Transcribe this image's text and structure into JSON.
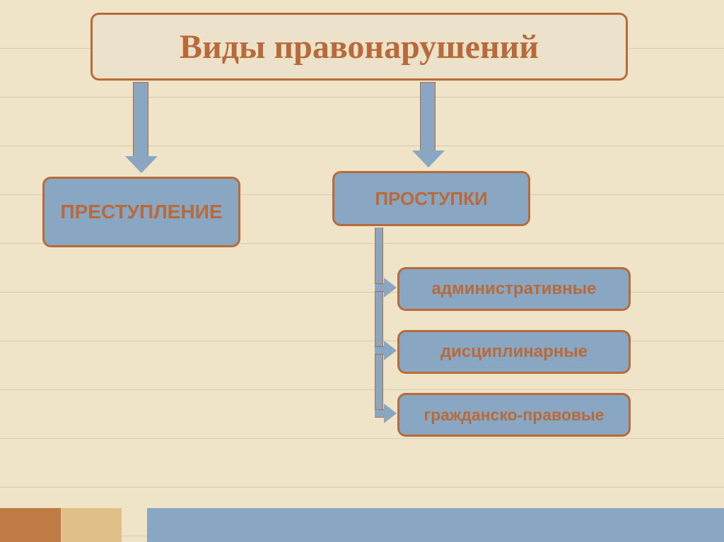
{
  "type": "flowchart",
  "background_color": "#f0e4c8",
  "stripe_color": "#d9ccae",
  "title": {
    "text": "Виды правонарушений",
    "fontsize": 48,
    "color": "#b96a3b",
    "bg": "#ece1c9",
    "border": "#b96a3b"
  },
  "node_style": {
    "fill": "#89a7c2",
    "border": "#b96a3b",
    "text_color": "#b96a3b",
    "border_radius": 12,
    "border_width": 3
  },
  "arrow_style": {
    "fill": "#89a7c2",
    "border": "#b96a3b"
  },
  "nodes": {
    "left": {
      "label": "ПРЕСТУПЛЕНИЕ",
      "fontsize": 28
    },
    "right": {
      "label": "ПРОСТУПКИ",
      "fontsize": 26
    },
    "children": [
      {
        "label": "административные",
        "fontsize": 24
      },
      {
        "label": "дисциплинарные",
        "fontsize": 24
      },
      {
        "label": "гражданско-правовые",
        "fontsize": 23
      }
    ]
  },
  "footer_colors": {
    "orange": "#c07a44",
    "gold": "#e0c088",
    "blue": "#89a7c2"
  }
}
